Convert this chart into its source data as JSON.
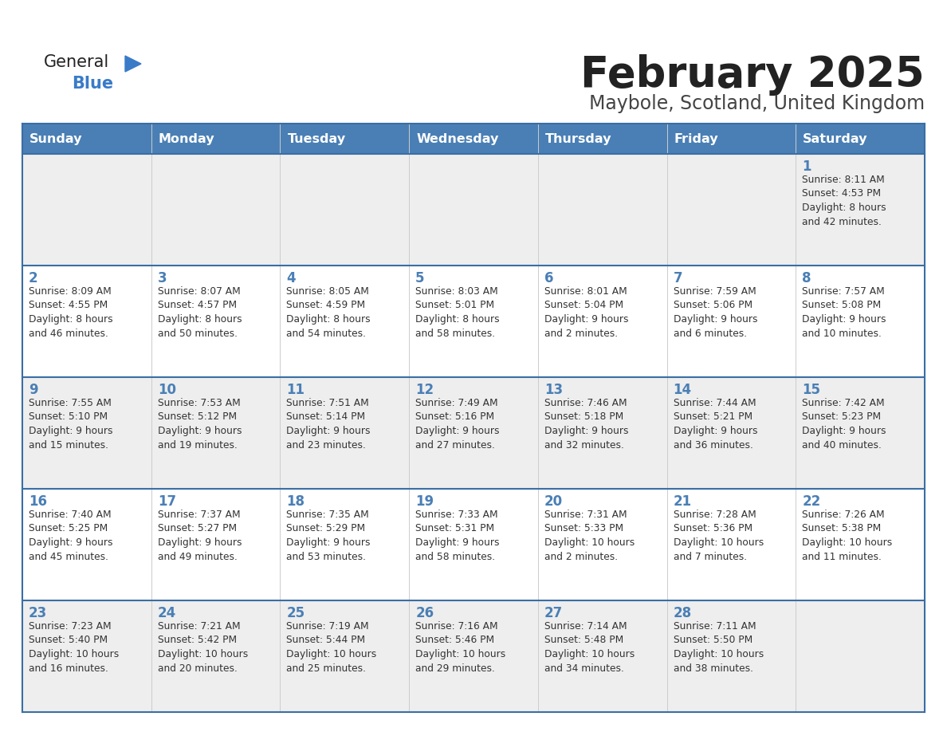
{
  "title": "February 2025",
  "subtitle": "Maybole, Scotland, United Kingdom",
  "days_of_week": [
    "Sunday",
    "Monday",
    "Tuesday",
    "Wednesday",
    "Thursday",
    "Friday",
    "Saturday"
  ],
  "header_bg": "#4a7fb5",
  "header_text": "#ffffff",
  "row_bg_light": "#f0f0f0",
  "row_bg_white": "#ffffff",
  "border_color": "#3a6ea5",
  "title_color": "#222222",
  "subtitle_color": "#444444",
  "day_number_color": "#4a7fb5",
  "cell_text_color": "#333333",
  "logo_general_color": "#222222",
  "logo_blue_color": "#3a7bc8",
  "calendar_data": [
    [
      {
        "day": null,
        "info": null
      },
      {
        "day": null,
        "info": null
      },
      {
        "day": null,
        "info": null
      },
      {
        "day": null,
        "info": null
      },
      {
        "day": null,
        "info": null
      },
      {
        "day": null,
        "info": null
      },
      {
        "day": 1,
        "info": "Sunrise: 8:11 AM\nSunset: 4:53 PM\nDaylight: 8 hours\nand 42 minutes."
      }
    ],
    [
      {
        "day": 2,
        "info": "Sunrise: 8:09 AM\nSunset: 4:55 PM\nDaylight: 8 hours\nand 46 minutes."
      },
      {
        "day": 3,
        "info": "Sunrise: 8:07 AM\nSunset: 4:57 PM\nDaylight: 8 hours\nand 50 minutes."
      },
      {
        "day": 4,
        "info": "Sunrise: 8:05 AM\nSunset: 4:59 PM\nDaylight: 8 hours\nand 54 minutes."
      },
      {
        "day": 5,
        "info": "Sunrise: 8:03 AM\nSunset: 5:01 PM\nDaylight: 8 hours\nand 58 minutes."
      },
      {
        "day": 6,
        "info": "Sunrise: 8:01 AM\nSunset: 5:04 PM\nDaylight: 9 hours\nand 2 minutes."
      },
      {
        "day": 7,
        "info": "Sunrise: 7:59 AM\nSunset: 5:06 PM\nDaylight: 9 hours\nand 6 minutes."
      },
      {
        "day": 8,
        "info": "Sunrise: 7:57 AM\nSunset: 5:08 PM\nDaylight: 9 hours\nand 10 minutes."
      }
    ],
    [
      {
        "day": 9,
        "info": "Sunrise: 7:55 AM\nSunset: 5:10 PM\nDaylight: 9 hours\nand 15 minutes."
      },
      {
        "day": 10,
        "info": "Sunrise: 7:53 AM\nSunset: 5:12 PM\nDaylight: 9 hours\nand 19 minutes."
      },
      {
        "day": 11,
        "info": "Sunrise: 7:51 AM\nSunset: 5:14 PM\nDaylight: 9 hours\nand 23 minutes."
      },
      {
        "day": 12,
        "info": "Sunrise: 7:49 AM\nSunset: 5:16 PM\nDaylight: 9 hours\nand 27 minutes."
      },
      {
        "day": 13,
        "info": "Sunrise: 7:46 AM\nSunset: 5:18 PM\nDaylight: 9 hours\nand 32 minutes."
      },
      {
        "day": 14,
        "info": "Sunrise: 7:44 AM\nSunset: 5:21 PM\nDaylight: 9 hours\nand 36 minutes."
      },
      {
        "day": 15,
        "info": "Sunrise: 7:42 AM\nSunset: 5:23 PM\nDaylight: 9 hours\nand 40 minutes."
      }
    ],
    [
      {
        "day": 16,
        "info": "Sunrise: 7:40 AM\nSunset: 5:25 PM\nDaylight: 9 hours\nand 45 minutes."
      },
      {
        "day": 17,
        "info": "Sunrise: 7:37 AM\nSunset: 5:27 PM\nDaylight: 9 hours\nand 49 minutes."
      },
      {
        "day": 18,
        "info": "Sunrise: 7:35 AM\nSunset: 5:29 PM\nDaylight: 9 hours\nand 53 minutes."
      },
      {
        "day": 19,
        "info": "Sunrise: 7:33 AM\nSunset: 5:31 PM\nDaylight: 9 hours\nand 58 minutes."
      },
      {
        "day": 20,
        "info": "Sunrise: 7:31 AM\nSunset: 5:33 PM\nDaylight: 10 hours\nand 2 minutes."
      },
      {
        "day": 21,
        "info": "Sunrise: 7:28 AM\nSunset: 5:36 PM\nDaylight: 10 hours\nand 7 minutes."
      },
      {
        "day": 22,
        "info": "Sunrise: 7:26 AM\nSunset: 5:38 PM\nDaylight: 10 hours\nand 11 minutes."
      }
    ],
    [
      {
        "day": 23,
        "info": "Sunrise: 7:23 AM\nSunset: 5:40 PM\nDaylight: 10 hours\nand 16 minutes."
      },
      {
        "day": 24,
        "info": "Sunrise: 7:21 AM\nSunset: 5:42 PM\nDaylight: 10 hours\nand 20 minutes."
      },
      {
        "day": 25,
        "info": "Sunrise: 7:19 AM\nSunset: 5:44 PM\nDaylight: 10 hours\nand 25 minutes."
      },
      {
        "day": 26,
        "info": "Sunrise: 7:16 AM\nSunset: 5:46 PM\nDaylight: 10 hours\nand 29 minutes."
      },
      {
        "day": 27,
        "info": "Sunrise: 7:14 AM\nSunset: 5:48 PM\nDaylight: 10 hours\nand 34 minutes."
      },
      {
        "day": 28,
        "info": "Sunrise: 7:11 AM\nSunset: 5:50 PM\nDaylight: 10 hours\nand 38 minutes."
      },
      {
        "day": null,
        "info": null
      }
    ]
  ],
  "row_bg_colors": [
    "#eeeeee",
    "#ffffff",
    "#eeeeee",
    "#ffffff",
    "#eeeeee"
  ]
}
